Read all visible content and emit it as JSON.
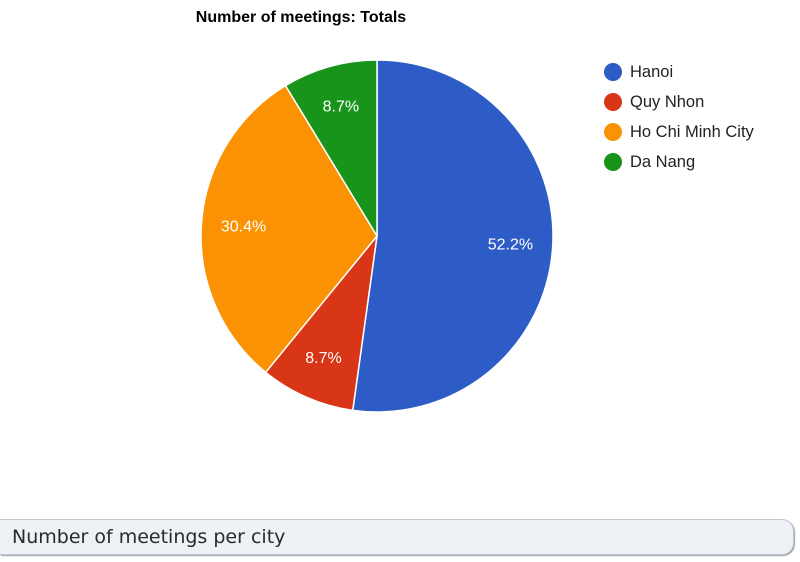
{
  "chart_data": {
    "type": "pie",
    "title": "Number of meetings: Totals",
    "categories": [
      "Hanoi",
      "Quy Nhon",
      "Ho Chi Minh City",
      "Da Nang"
    ],
    "values": [
      52.2,
      8.7,
      30.4,
      8.7
    ],
    "value_labels": [
      "52.2%",
      "8.7%",
      "30.4%",
      "8.7%"
    ],
    "colors": [
      "#2e5cc6",
      "#d93517",
      "#fb9203",
      "#179419"
    ],
    "legend_position": "right"
  },
  "caption": "Number of meetings per city"
}
